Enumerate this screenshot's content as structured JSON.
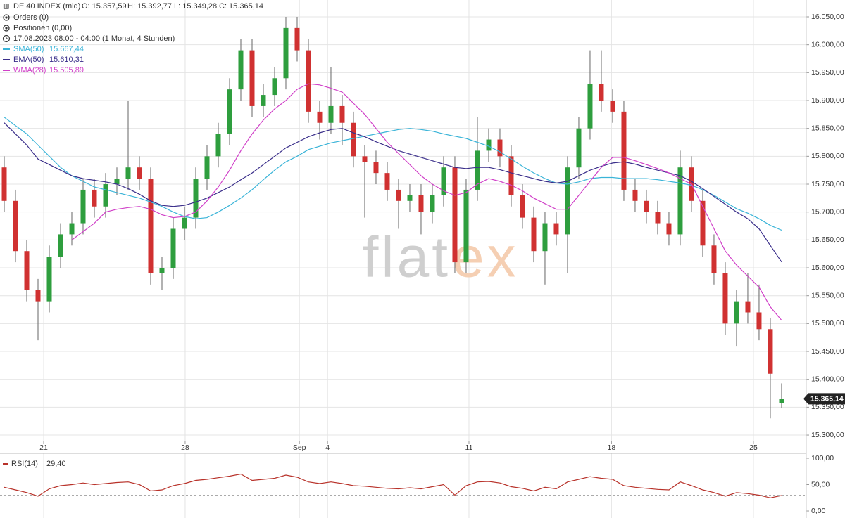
{
  "chart_data": {
    "type": "candlestick",
    "title": "DE 40 INDEX (mid)",
    "ohlc_labels": [
      "O: 15.357,59",
      "H: 15.392,77",
      "L: 15.349,28",
      "C: 15.365,14"
    ],
    "info_lines": [
      "Orders (0)",
      "Positionen (0,00)",
      "17.08.2023 08:00 - 04:00  (1 Monat, 4 Stunden)"
    ],
    "watermark": [
      "flat",
      "ex"
    ],
    "open": [
      15780,
      15720,
      15630,
      15560,
      15540,
      15620,
      15660,
      15680,
      15740,
      15710,
      15750,
      15760,
      15780,
      15760,
      15590,
      15600,
      15670,
      15690,
      15760,
      15800,
      15840,
      15920,
      15990,
      15890,
      15910,
      15940,
      16030,
      15990,
      15880,
      15860,
      15890,
      15860,
      15800,
      15790,
      15770,
      15740,
      15720,
      15730,
      15700,
      15730,
      15780,
      15610,
      15740,
      15810,
      15830,
      15800,
      15730,
      15690,
      15630,
      15680,
      15660,
      15780,
      15850,
      15930,
      15900,
      15880,
      15740,
      15720,
      15700,
      15680,
      15660,
      15780,
      15720,
      15640,
      15590,
      15500,
      15540,
      15520,
      15490,
      15357.59
    ],
    "high": [
      15800,
      15740,
      15650,
      15580,
      15640,
      15680,
      15700,
      15760,
      15760,
      15770,
      15780,
      15900,
      15800,
      15780,
      15620,
      15690,
      15710,
      15780,
      15820,
      15860,
      15940,
      16010,
      16010,
      15930,
      15960,
      16050,
      16050,
      16010,
      15900,
      15960,
      15910,
      15880,
      15820,
      15810,
      15790,
      15760,
      15750,
      15750,
      15750,
      15800,
      15800,
      15760,
      15870,
      15850,
      15850,
      15820,
      15750,
      15710,
      15700,
      15700,
      15800,
      15870,
      15990,
      15990,
      15920,
      15900,
      15760,
      15740,
      15720,
      15700,
      15810,
      15800,
      15740,
      15660,
      15610,
      15560,
      15590,
      15570,
      15510,
      15392.77
    ],
    "low": [
      15700,
      15610,
      15540,
      15470,
      15520,
      15600,
      15640,
      15660,
      15690,
      15690,
      15730,
      15740,
      15740,
      15570,
      15560,
      15580,
      15650,
      15670,
      15740,
      15780,
      15820,
      15900,
      15870,
      15870,
      15890,
      15920,
      15970,
      15860,
      15830,
      15840,
      15820,
      15780,
      15690,
      15750,
      15720,
      15670,
      15700,
      15660,
      15680,
      15710,
      15590,
      15590,
      15720,
      15790,
      15780,
      15710,
      15670,
      15610,
      15570,
      15640,
      15590,
      15760,
      15830,
      15880,
      15860,
      15720,
      15700,
      15680,
      15660,
      15640,
      15640,
      15700,
      15620,
      15570,
      15480,
      15460,
      15500,
      15470,
      15330,
      15349.28
    ],
    "close": [
      15720,
      15630,
      15560,
      15540,
      15620,
      15660,
      15680,
      15740,
      15710,
      15750,
      15760,
      15780,
      15760,
      15590,
      15600,
      15670,
      15690,
      15760,
      15800,
      15840,
      15920,
      15990,
      15890,
      15910,
      15940,
      16030,
      15990,
      15880,
      15860,
      15890,
      15860,
      15800,
      15790,
      15770,
      15740,
      15720,
      15730,
      15700,
      15730,
      15780,
      15610,
      15740,
      15810,
      15830,
      15800,
      15730,
      15690,
      15630,
      15680,
      15660,
      15780,
      15850,
      15930,
      15900,
      15880,
      15740,
      15720,
      15700,
      15680,
      15660,
      15780,
      15720,
      15640,
      15590,
      15500,
      15540,
      15520,
      15490,
      15410,
      15365.14
    ],
    "up_color": "#2e9e3e",
    "down_color": "#d03131",
    "xlim": [
      -0.375,
      71.19
    ],
    "xticks": [
      {
        "value": 3.5,
        "label": "21"
      },
      {
        "value": 16.06,
        "label": "28"
      },
      {
        "value": 26.2,
        "label": "Sep"
      },
      {
        "value": 28.7,
        "label": "4"
      },
      {
        "value": 41.25,
        "label": "11"
      },
      {
        "value": 53.9,
        "label": "18"
      },
      {
        "value": 66.5,
        "label": "25"
      }
    ],
    "ylim": [
      15288.7,
      16080.25
    ],
    "yticks": [
      {
        "value": 15300,
        "label": "15.300,00"
      },
      {
        "value": 15350,
        "label": "15.350,00"
      },
      {
        "value": 15400,
        "label": "15.400,00"
      },
      {
        "value": 15450,
        "label": "15.450,00"
      },
      {
        "value": 15500,
        "label": "15.500,00"
      },
      {
        "value": 15550,
        "label": "15.550,00"
      },
      {
        "value": 15600,
        "label": "15.600,00"
      },
      {
        "value": 15650,
        "label": "15.650,00"
      },
      {
        "value": 15700,
        "label": "15.700,00"
      },
      {
        "value": 15750,
        "label": "15.750,00"
      },
      {
        "value": 15800,
        "label": "15.800,00"
      },
      {
        "value": 15850,
        "label": "15.850,00"
      },
      {
        "value": 15900,
        "label": "15.900,00"
      },
      {
        "value": 15950,
        "label": "15.950,00"
      },
      {
        "value": 16000,
        "label": "16.000,00"
      },
      {
        "value": 16050,
        "label": "16.050,00"
      }
    ],
    "grid": true,
    "last_label": "15.365,14",
    "overlays": [
      {
        "name": "SMA(50)",
        "value_label": "15.667,44",
        "color": "#3ab4d8",
        "values": [
          15870,
          15855,
          15840,
          15820,
          15800,
          15780,
          15765,
          15755,
          15745,
          15740,
          15735,
          15730,
          15725,
          15718,
          15710,
          15700,
          15692,
          15688,
          15690,
          15700,
          15712,
          15725,
          15740,
          15758,
          15775,
          15790,
          15800,
          15812,
          15818,
          15824,
          15828,
          15832,
          15836,
          15840,
          15844,
          15848,
          15850,
          15848,
          15845,
          15840,
          15836,
          15832,
          15825,
          15818,
          15808,
          15795,
          15782,
          15770,
          15760,
          15752,
          15750,
          15754,
          15760,
          15762,
          15762,
          15760,
          15760,
          15760,
          15758,
          15755,
          15752,
          15748,
          15740,
          15730,
          15718,
          15706,
          15698,
          15688,
          15676,
          15667.44
        ]
      },
      {
        "name": "EMA(50)",
        "value_label": "15.610,31",
        "color": "#3a2e8a",
        "values": [
          15860,
          15840,
          15820,
          15795,
          15785,
          15775,
          15765,
          15760,
          15757,
          15754,
          15750,
          15742,
          15732,
          15720,
          15712,
          15710,
          15712,
          15718,
          15725,
          15735,
          15745,
          15758,
          15770,
          15785,
          15800,
          15815,
          15825,
          15835,
          15842,
          15848,
          15850,
          15842,
          15835,
          15826,
          15818,
          15810,
          15804,
          15798,
          15792,
          15786,
          15780,
          15778,
          15780,
          15780,
          15776,
          15770,
          15765,
          15760,
          15755,
          15752,
          15755,
          15765,
          15775,
          15782,
          15788,
          15790,
          15786,
          15780,
          15775,
          15770,
          15765,
          15755,
          15742,
          15728,
          15714,
          15700,
          15688,
          15670,
          15640,
          15610.31
        ]
      },
      {
        "name": "WMA(28)",
        "value_label": "15.505,89",
        "color": "#d040c8",
        "values": [
          null,
          null,
          null,
          null,
          null,
          null,
          15650,
          15665,
          15680,
          15700,
          15705,
          15708,
          15710,
          15705,
          15695,
          15690,
          15692,
          15700,
          15720,
          15745,
          15775,
          15810,
          15840,
          15865,
          15885,
          15900,
          15920,
          15930,
          15928,
          15922,
          15915,
          15895,
          15875,
          15850,
          15825,
          15805,
          15785,
          15765,
          15750,
          15738,
          15730,
          15735,
          15750,
          15760,
          15755,
          15748,
          15738,
          15725,
          15715,
          15705,
          15705,
          15730,
          15755,
          15780,
          15798,
          15798,
          15792,
          15785,
          15778,
          15770,
          15760,
          15750,
          15710,
          15670,
          15630,
          15605,
          15585,
          15565,
          15530,
          15505.89
        ]
      }
    ],
    "rsi": {
      "name": "RSI(14)",
      "value_label": "29,40",
      "color": "#b8322a",
      "values": [
        45,
        40,
        35,
        28,
        42,
        48,
        50,
        53,
        50,
        52,
        54,
        55,
        50,
        38,
        40,
        48,
        52,
        58,
        60,
        63,
        66,
        70,
        58,
        60,
        62,
        68,
        64,
        55,
        52,
        55,
        52,
        48,
        47,
        45,
        43,
        42,
        44,
        42,
        46,
        50,
        30,
        48,
        55,
        56,
        53,
        46,
        43,
        38,
        45,
        42,
        55,
        60,
        65,
        62,
        60,
        48,
        45,
        43,
        41,
        40,
        55,
        48,
        40,
        35,
        28,
        35,
        33,
        30,
        25,
        29.4
      ],
      "ylim": [
        -13.3,
        109.3
      ],
      "yticks": [
        {
          "value": 0,
          "label": "0,00"
        },
        {
          "value": 50,
          "label": "50,00"
        },
        {
          "value": 100,
          "label": "100,00"
        }
      ],
      "levels": [
        30,
        70
      ]
    }
  }
}
